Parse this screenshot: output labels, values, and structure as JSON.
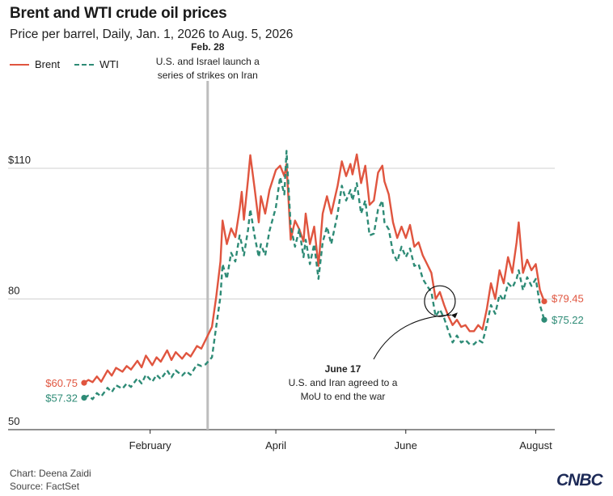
{
  "title": "Brent and WTI crude oil prices",
  "subtitle": "Price per barrel, Daily, Jan. 1, 2026 to Aug. 5, 2026",
  "footer": {
    "credit": "Chart: Deena Zaidi",
    "source": "Source: FactSet",
    "logo": "CNBC"
  },
  "colors": {
    "brent": "#e0553f",
    "wti": "#2e8b76",
    "event_line": "#bdbdbd",
    "grid": "#d0d0d0"
  },
  "chart_data": {
    "type": "line",
    "title": "Brent and WTI crude oil prices",
    "subtitle": "Price per barrel, Daily, Jan. 1, 2026 to Aug. 5, 2026",
    "xlabel": "",
    "ylabel": "",
    "x_range": [
      "2026-01-01",
      "2026-08-05"
    ],
    "ylim": [
      50,
      110
    ],
    "y_ticks": [
      {
        "value": 110,
        "label": "$110"
      },
      {
        "value": 80,
        "label": "80"
      },
      {
        "value": 50,
        "label": "50"
      }
    ],
    "x_ticks": [
      {
        "date": "2026-02-01",
        "label": "February"
      },
      {
        "date": "2026-04-01",
        "label": "April"
      },
      {
        "date": "2026-06-01",
        "label": "June"
      },
      {
        "date": "2026-08-01",
        "label": "August"
      }
    ],
    "grid": true,
    "legend_position": "top-left",
    "series": [
      {
        "name": "Brent",
        "style": "solid",
        "start_label": "$60.75",
        "end_label": "$79.45",
        "points": [
          [
            "2026-01-01",
            60.75
          ],
          [
            "2026-01-03",
            61.4
          ],
          [
            "2026-01-05",
            60.9
          ],
          [
            "2026-01-07",
            62.2
          ],
          [
            "2026-01-09",
            61.0
          ],
          [
            "2026-01-12",
            63.6
          ],
          [
            "2026-01-14",
            62.4
          ],
          [
            "2026-01-16",
            64.2
          ],
          [
            "2026-01-19",
            63.3
          ],
          [
            "2026-01-21",
            64.6
          ],
          [
            "2026-01-23",
            63.8
          ],
          [
            "2026-01-26",
            65.8
          ],
          [
            "2026-01-28",
            64.3
          ],
          [
            "2026-01-30",
            67.0
          ],
          [
            "2026-02-02",
            64.8
          ],
          [
            "2026-02-04",
            66.6
          ],
          [
            "2026-02-06",
            65.6
          ],
          [
            "2026-02-09",
            68.2
          ],
          [
            "2026-02-11",
            66.0
          ],
          [
            "2026-02-13",
            67.8
          ],
          [
            "2026-02-16",
            66.3
          ],
          [
            "2026-02-18",
            67.6
          ],
          [
            "2026-02-20",
            66.8
          ],
          [
            "2026-02-23",
            69.2
          ],
          [
            "2026-02-25",
            68.6
          ],
          [
            "2026-02-27",
            70.6
          ],
          [
            "2026-03-02",
            73.6
          ],
          [
            "2026-03-04",
            80.4
          ],
          [
            "2026-03-06",
            88.6
          ],
          [
            "2026-03-07",
            98.0
          ],
          [
            "2026-03-09",
            92.6
          ],
          [
            "2026-03-11",
            96.2
          ],
          [
            "2026-03-13",
            94.2
          ],
          [
            "2026-03-15",
            100.6
          ],
          [
            "2026-03-16",
            104.6
          ],
          [
            "2026-03-17",
            98.2
          ],
          [
            "2026-03-19",
            107.6
          ],
          [
            "2026-03-20",
            113.0
          ],
          [
            "2026-03-22",
            105.6
          ],
          [
            "2026-03-24",
            97.6
          ],
          [
            "2026-03-25",
            103.6
          ],
          [
            "2026-03-27",
            99.6
          ],
          [
            "2026-03-29",
            105.0
          ],
          [
            "2026-04-01",
            109.6
          ],
          [
            "2026-04-03",
            110.6
          ],
          [
            "2026-04-05",
            108.2
          ],
          [
            "2026-04-06",
            111.0
          ],
          [
            "2026-04-08",
            93.6
          ],
          [
            "2026-04-10",
            98.0
          ],
          [
            "2026-04-12",
            96.0
          ],
          [
            "2026-04-14",
            93.2
          ],
          [
            "2026-04-15",
            99.6
          ],
          [
            "2026-04-17",
            92.6
          ],
          [
            "2026-04-19",
            96.6
          ],
          [
            "2026-04-21",
            87.6
          ],
          [
            "2026-04-23",
            99.6
          ],
          [
            "2026-04-25",
            103.6
          ],
          [
            "2026-04-27",
            99.6
          ],
          [
            "2026-04-30",
            106.0
          ],
          [
            "2026-05-02",
            111.6
          ],
          [
            "2026-05-04",
            108.2
          ],
          [
            "2026-05-06",
            111.0
          ],
          [
            "2026-05-07",
            108.6
          ],
          [
            "2026-05-09",
            113.2
          ],
          [
            "2026-05-11",
            106.6
          ],
          [
            "2026-05-13",
            110.6
          ],
          [
            "2026-05-15",
            101.6
          ],
          [
            "2026-05-17",
            102.6
          ],
          [
            "2026-05-19",
            109.0
          ],
          [
            "2026-05-21",
            110.6
          ],
          [
            "2026-05-22",
            107.0
          ],
          [
            "2026-05-24",
            104.0
          ],
          [
            "2026-05-26",
            97.6
          ],
          [
            "2026-05-28",
            94.0
          ],
          [
            "2026-05-30",
            96.6
          ],
          [
            "2026-06-01",
            94.0
          ],
          [
            "2026-06-03",
            97.0
          ],
          [
            "2026-06-05",
            92.0
          ],
          [
            "2026-06-07",
            93.0
          ],
          [
            "2026-06-09",
            90.0
          ],
          [
            "2026-06-11",
            88.0
          ],
          [
            "2026-06-13",
            86.0
          ],
          [
            "2026-06-15",
            80.0
          ],
          [
            "2026-06-17",
            81.6
          ],
          [
            "2026-06-19",
            78.6
          ],
          [
            "2026-06-21",
            76.0
          ],
          [
            "2026-06-23",
            74.0
          ],
          [
            "2026-06-25",
            75.2
          ],
          [
            "2026-06-27",
            73.6
          ],
          [
            "2026-06-29",
            74.0
          ],
          [
            "2026-07-01",
            72.6
          ],
          [
            "2026-07-03",
            72.6
          ],
          [
            "2026-07-05",
            74.0
          ],
          [
            "2026-07-07",
            73.0
          ],
          [
            "2026-07-09",
            77.6
          ],
          [
            "2026-07-11",
            83.6
          ],
          [
            "2026-07-13",
            80.0
          ],
          [
            "2026-07-15",
            86.6
          ],
          [
            "2026-07-17",
            83.6
          ],
          [
            "2026-07-19",
            89.6
          ],
          [
            "2026-07-21",
            86.0
          ],
          [
            "2026-07-23",
            93.0
          ],
          [
            "2026-07-24",
            97.6
          ],
          [
            "2026-07-26",
            86.0
          ],
          [
            "2026-07-28",
            89.0
          ],
          [
            "2026-07-30",
            86.6
          ],
          [
            "2026-08-01",
            88.0
          ],
          [
            "2026-08-03",
            82.0
          ],
          [
            "2026-08-05",
            79.45
          ]
        ]
      },
      {
        "name": "WTI",
        "style": "dashed",
        "start_label": "$57.32",
        "end_label": "$75.22",
        "points": [
          [
            "2026-01-01",
            57.32
          ],
          [
            "2026-01-03",
            57.8
          ],
          [
            "2026-01-05",
            57.0
          ],
          [
            "2026-01-07",
            58.4
          ],
          [
            "2026-01-09",
            57.6
          ],
          [
            "2026-01-12",
            59.6
          ],
          [
            "2026-01-14",
            58.6
          ],
          [
            "2026-01-16",
            60.2
          ],
          [
            "2026-01-19",
            59.4
          ],
          [
            "2026-01-21",
            60.6
          ],
          [
            "2026-01-23",
            59.8
          ],
          [
            "2026-01-26",
            61.8
          ],
          [
            "2026-01-28",
            60.6
          ],
          [
            "2026-01-30",
            62.6
          ],
          [
            "2026-02-02",
            61.0
          ],
          [
            "2026-02-04",
            62.6
          ],
          [
            "2026-02-06",
            61.6
          ],
          [
            "2026-02-09",
            63.6
          ],
          [
            "2026-02-11",
            62.0
          ],
          [
            "2026-02-13",
            63.6
          ],
          [
            "2026-02-16",
            62.4
          ],
          [
            "2026-02-18",
            63.4
          ],
          [
            "2026-02-20",
            62.6
          ],
          [
            "2026-02-23",
            65.0
          ],
          [
            "2026-02-25",
            64.6
          ],
          [
            "2026-02-27",
            65.0
          ],
          [
            "2026-03-02",
            66.6
          ],
          [
            "2026-03-04",
            73.6
          ],
          [
            "2026-03-06",
            80.6
          ],
          [
            "2026-03-07",
            88.0
          ],
          [
            "2026-03-09",
            84.6
          ],
          [
            "2026-03-11",
            90.6
          ],
          [
            "2026-03-13",
            88.6
          ],
          [
            "2026-03-15",
            94.6
          ],
          [
            "2026-03-16",
            92.6
          ],
          [
            "2026-03-17",
            90.0
          ],
          [
            "2026-03-19",
            96.0
          ],
          [
            "2026-03-20",
            100.6
          ],
          [
            "2026-03-22",
            94.6
          ],
          [
            "2026-03-24",
            89.6
          ],
          [
            "2026-03-25",
            92.6
          ],
          [
            "2026-03-27",
            90.0
          ],
          [
            "2026-03-29",
            95.6
          ],
          [
            "2026-04-01",
            101.0
          ],
          [
            "2026-04-03",
            108.0
          ],
          [
            "2026-04-05",
            104.0
          ],
          [
            "2026-04-06",
            114.0
          ],
          [
            "2026-04-08",
            96.6
          ],
          [
            "2026-04-10",
            92.0
          ],
          [
            "2026-04-12",
            96.0
          ],
          [
            "2026-04-14",
            89.6
          ],
          [
            "2026-04-15",
            93.6
          ],
          [
            "2026-04-17",
            88.0
          ],
          [
            "2026-04-19",
            92.6
          ],
          [
            "2026-04-21",
            84.6
          ],
          [
            "2026-04-23",
            93.0
          ],
          [
            "2026-04-25",
            96.6
          ],
          [
            "2026-04-27",
            92.6
          ],
          [
            "2026-04-30",
            99.6
          ],
          [
            "2026-05-02",
            106.0
          ],
          [
            "2026-05-04",
            102.6
          ],
          [
            "2026-05-06",
            105.0
          ],
          [
            "2026-05-07",
            102.6
          ],
          [
            "2026-05-09",
            106.6
          ],
          [
            "2026-05-11",
            99.6
          ],
          [
            "2026-05-13",
            102.6
          ],
          [
            "2026-05-15",
            94.6
          ],
          [
            "2026-05-17",
            95.0
          ],
          [
            "2026-05-19",
            100.6
          ],
          [
            "2026-05-21",
            102.6
          ],
          [
            "2026-05-22",
            97.6
          ],
          [
            "2026-05-24",
            96.0
          ],
          [
            "2026-05-26",
            90.6
          ],
          [
            "2026-05-28",
            88.6
          ],
          [
            "2026-05-30",
            92.0
          ],
          [
            "2026-06-01",
            89.6
          ],
          [
            "2026-06-03",
            91.6
          ],
          [
            "2026-06-05",
            87.6
          ],
          [
            "2026-06-07",
            88.0
          ],
          [
            "2026-06-09",
            84.6
          ],
          [
            "2026-06-11",
            83.0
          ],
          [
            "2026-06-13",
            81.6
          ],
          [
            "2026-06-15",
            76.0
          ],
          [
            "2026-06-17",
            77.6
          ],
          [
            "2026-06-19",
            75.6
          ],
          [
            "2026-06-21",
            72.6
          ],
          [
            "2026-06-23",
            70.0
          ],
          [
            "2026-06-25",
            71.6
          ],
          [
            "2026-06-27",
            70.0
          ],
          [
            "2026-06-29",
            70.6
          ],
          [
            "2026-07-01",
            69.6
          ],
          [
            "2026-07-03",
            69.6
          ],
          [
            "2026-07-05",
            70.6
          ],
          [
            "2026-07-07",
            70.0
          ],
          [
            "2026-07-09",
            74.0
          ],
          [
            "2026-07-11",
            78.6
          ],
          [
            "2026-07-13",
            76.6
          ],
          [
            "2026-07-15",
            81.0
          ],
          [
            "2026-07-17",
            79.6
          ],
          [
            "2026-07-19",
            83.6
          ],
          [
            "2026-07-21",
            82.6
          ],
          [
            "2026-07-23",
            84.6
          ],
          [
            "2026-07-24",
            86.6
          ],
          [
            "2026-07-26",
            82.0
          ],
          [
            "2026-07-28",
            85.0
          ],
          [
            "2026-07-30",
            83.0
          ],
          [
            "2026-08-01",
            84.6
          ],
          [
            "2026-08-03",
            78.6
          ],
          [
            "2026-08-05",
            75.22
          ]
        ]
      }
    ],
    "annotations": [
      {
        "id": "feb28",
        "date": "2026-02-28",
        "kind": "vertical-line",
        "heading": "Feb. 28",
        "lines": [
          "U.S. and Israel launch a",
          "series of strikes on Iran"
        ]
      },
      {
        "id": "june17",
        "date": "2026-06-17",
        "value": 79.5,
        "kind": "circle-arrow",
        "heading": "June 17",
        "lines": [
          "U.S. and Iran agreed to a",
          "MoU to end the war"
        ]
      }
    ]
  }
}
